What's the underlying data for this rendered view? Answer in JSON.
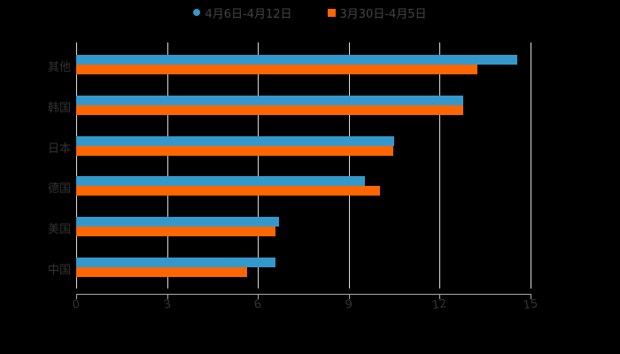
{
  "chart_data": {
    "type": "bar",
    "orientation": "horizontal",
    "title": "",
    "xlabel": "",
    "ylabel": "",
    "xlim": [
      0,
      15
    ],
    "xticks": [
      0,
      3,
      6,
      9,
      12,
      15
    ],
    "grid": true,
    "legend_position": "top",
    "categories": [
      "其他",
      "韩国",
      "日本",
      "德国",
      "美国",
      "中国"
    ],
    "series": [
      {
        "name": "4月6日-4月12日",
        "color": "#3399cc",
        "values": [
          14.56,
          12.78,
          10.5,
          9.53,
          6.7,
          6.58
        ]
      },
      {
        "name": "3月30日-4月5日",
        "color": "#ff6600",
        "values": [
          13.24,
          12.78,
          10.47,
          10.03,
          6.58,
          5.64
        ]
      }
    ]
  },
  "legend": {
    "items": [
      {
        "label": "4月6日-4月12日",
        "color": "#3399cc"
      },
      {
        "label": "3月30日-4月5日",
        "color": "#ff6600"
      }
    ]
  },
  "axis": {
    "ticks": [
      "0",
      "3",
      "6",
      "9",
      "12",
      "15"
    ]
  }
}
